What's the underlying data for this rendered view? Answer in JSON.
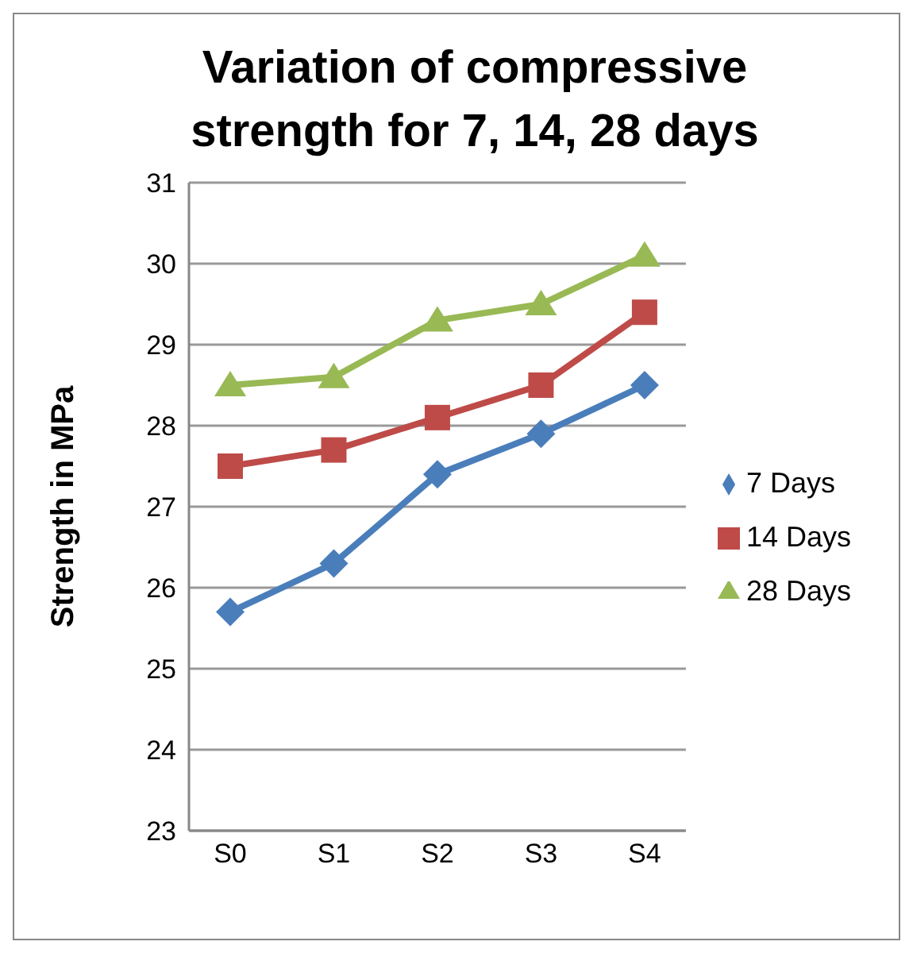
{
  "chart_data": {
    "type": "line",
    "title": "Variation of compressive strength for 7, 14, 28 days",
    "ylabel": "Strength in MPa",
    "categories": [
      "S0",
      "S1",
      "S2",
      "S3",
      "S4"
    ],
    "series": [
      {
        "name": "7 Days",
        "color": "#4a7ebb",
        "marker": "diamond",
        "values": [
          25.7,
          26.3,
          27.4,
          27.9,
          28.5
        ]
      },
      {
        "name": "14 Days",
        "color": "#be4b48",
        "marker": "square",
        "values": [
          27.5,
          27.7,
          28.1,
          28.5,
          29.4
        ]
      },
      {
        "name": "28 Days",
        "color": "#98b954",
        "marker": "triangle",
        "values": [
          28.5,
          28.6,
          29.3,
          29.5,
          30.1
        ]
      }
    ],
    "ylim": [
      23,
      31
    ],
    "yticks": [
      23,
      24,
      25,
      26,
      27,
      28,
      29,
      30,
      31
    ],
    "grid": "y",
    "legend": "right"
  }
}
